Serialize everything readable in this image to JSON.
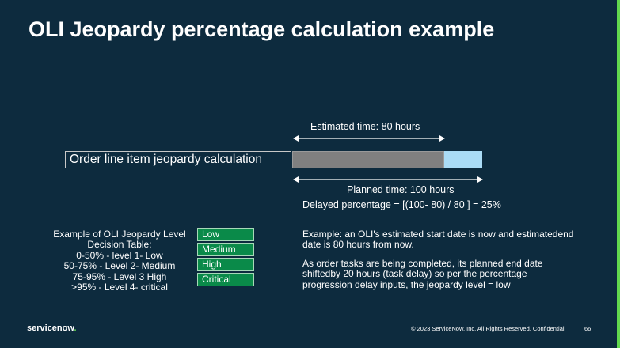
{
  "slide": {
    "title": "OLI Jeopardy percentage calculation example"
  },
  "diagram": {
    "estimated_label": "Estimated time: 80 hours",
    "order_line_label": "Order line item jeopardy calculation",
    "planned_label": "Planned time: 100 hours",
    "delayed_formula": "Delayed percentage = [(100- 80) / 80 ] = 25%",
    "colors": {
      "estimated_bar": "#808080",
      "delay_bar": "#aadcf6"
    }
  },
  "decision_table": {
    "lines": [
      "Example of OLI Jeopardy Level",
      "Decision Table:",
      "0-50% - level 1- Low",
      "50-75% - Level 2- Medium",
      "75-95% - Level 3 High",
      ">95% - Level 4- critical"
    ],
    "levels": [
      "Low",
      "Medium",
      "High",
      "Critical"
    ],
    "level_color": "#0a8a49"
  },
  "example": {
    "paragraph1": "Example: an OLI's estimated start date is now and estimatedend date is 80 hours from now.",
    "paragraph2": "As order tasks are being completed, its planned end date shiftedby 20 hours (task delay) so per the percentage progression delay inputs, the jeopardy level = low"
  },
  "footer": {
    "logo": "servicenow",
    "copyright": "© 2023 ServiceNow, Inc. All Rights Reserved. Confidential.",
    "page_number": "66"
  },
  "theme": {
    "background": "#0d2b3e",
    "accent": "#62d84e"
  }
}
